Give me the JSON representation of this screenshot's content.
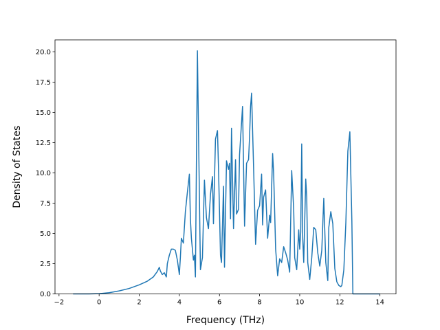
{
  "chart_data": {
    "type": "line",
    "title": "",
    "xlabel": "Frequency (THz)",
    "ylabel": "Density of States",
    "xlim": [
      -2.2,
      14.8
    ],
    "ylim": [
      0,
      21.0
    ],
    "x_ticks": [
      -2,
      0,
      2,
      4,
      6,
      8,
      10,
      12,
      14
    ],
    "x_tick_labels": [
      "−2",
      "0",
      "2",
      "4",
      "6",
      "8",
      "10",
      "12",
      "14"
    ],
    "y_ticks": [
      0.0,
      2.5,
      5.0,
      7.5,
      10.0,
      12.5,
      15.0,
      17.5,
      20.0
    ],
    "y_tick_labels": [
      "0.0",
      "2.5",
      "5.0",
      "7.5",
      "10.0",
      "12.5",
      "15.0",
      "17.5",
      "20.0"
    ],
    "grid": false,
    "legend": "none",
    "color": "#1f77b4",
    "series": [
      {
        "x": [
          -1.3,
          -0.5,
          0.0,
          0.5,
          1.0,
          1.5,
          2.0,
          2.4,
          2.7,
          2.9,
          3.0,
          3.05,
          3.15,
          3.25,
          3.35,
          3.4,
          3.5,
          3.6,
          3.7,
          3.8,
          3.9,
          4.0,
          4.05,
          4.1,
          4.2,
          4.3,
          4.4,
          4.5,
          4.55,
          4.6,
          4.7,
          4.75,
          4.8,
          4.9,
          4.95,
          5.05,
          5.15,
          5.25,
          5.35,
          5.45,
          5.55,
          5.65,
          5.7,
          5.8,
          5.9,
          5.95,
          6.05,
          6.1,
          6.2,
          6.25,
          6.35,
          6.45,
          6.5,
          6.55,
          6.6,
          6.7,
          6.8,
          6.85,
          6.95,
          7.0,
          7.15,
          7.25,
          7.35,
          7.45,
          7.5,
          7.55,
          7.6,
          7.7,
          7.8,
          7.9,
          8.0,
          8.1,
          8.15,
          8.2,
          8.3,
          8.4,
          8.5,
          8.55,
          8.65,
          8.7,
          8.8,
          8.9,
          9.0,
          9.1,
          9.2,
          9.3,
          9.4,
          9.5,
          9.6,
          9.7,
          9.75,
          9.85,
          9.95,
          10.0,
          10.05,
          10.1,
          10.15,
          10.2,
          10.3,
          10.35,
          10.4,
          10.5,
          10.6,
          10.7,
          10.8,
          10.9,
          11.0,
          11.1,
          11.2,
          11.3,
          11.4,
          11.45,
          11.55,
          11.65,
          11.75,
          11.85,
          11.95,
          12.05,
          12.1,
          12.2,
          12.3,
          12.4,
          12.5,
          12.6,
          12.65,
          12.7,
          12.8,
          14.0
        ],
        "y": [
          0.0,
          0.0,
          0.02,
          0.1,
          0.25,
          0.45,
          0.75,
          1.05,
          1.4,
          1.85,
          2.2,
          1.9,
          1.6,
          1.75,
          1.4,
          2.5,
          3.2,
          3.7,
          3.7,
          3.6,
          2.8,
          1.6,
          3.0,
          4.6,
          4.2,
          6.8,
          8.4,
          9.9,
          6.2,
          4.6,
          2.8,
          3.2,
          1.4,
          20.1,
          14.0,
          2.0,
          3.0,
          9.4,
          6.3,
          5.4,
          8.2,
          9.7,
          5.8,
          12.8,
          13.5,
          10.5,
          3.2,
          2.6,
          8.9,
          2.2,
          11.0,
          10.3,
          10.8,
          6.2,
          13.7,
          5.4,
          11.1,
          6.6,
          7.0,
          11.5,
          15.5,
          5.6,
          10.8,
          11.1,
          13.0,
          15.5,
          16.6,
          10.5,
          4.1,
          6.9,
          7.3,
          9.9,
          5.7,
          8.0,
          8.6,
          4.6,
          6.5,
          5.9,
          11.6,
          10.0,
          3.7,
          1.5,
          2.9,
          2.6,
          3.9,
          3.4,
          2.8,
          1.8,
          10.2,
          7.0,
          3.0,
          2.0,
          5.3,
          3.7,
          5.1,
          12.4,
          4.6,
          2.6,
          9.5,
          8.0,
          2.6,
          1.2,
          3.0,
          5.5,
          5.3,
          3.4,
          2.3,
          3.6,
          7.9,
          2.6,
          1.1,
          5.5,
          6.8,
          5.8,
          2.1,
          1.0,
          0.7,
          0.6,
          0.7,
          2.0,
          5.9,
          11.8,
          13.4,
          6.0,
          0.0,
          0.0,
          0.0,
          0.0
        ]
      }
    ]
  }
}
